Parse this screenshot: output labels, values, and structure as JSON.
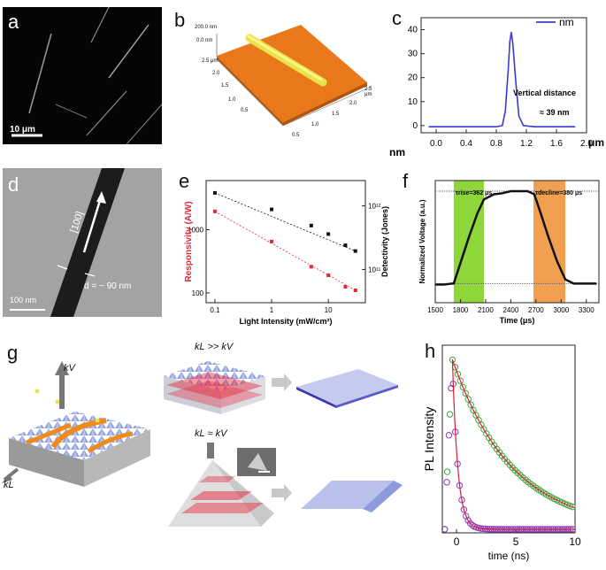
{
  "panels": {
    "a": {
      "label": "a",
      "scale_bar": "10 μm"
    },
    "b": {
      "label": "b",
      "z_top": "200.0 nm",
      "z_bottom": "0.0 nm",
      "left_ticks": [
        "2.5 μm",
        "2.0",
        "1.5",
        "1.0",
        "0.5"
      ],
      "right_ticks": [
        "2.5 μm",
        "2.0",
        "1.5",
        "1.0",
        "0.5"
      ]
    },
    "c": {
      "label": "c",
      "legend": "nm",
      "annotation_title": "Vertical distance",
      "annotation_value": "≈ 39 nm",
      "yunit": "nm",
      "xunit": "μm"
    },
    "d": {
      "label": "d",
      "direction": "[100]",
      "width_note": "d = ~ 90 nm",
      "scale_bar": "100 nm"
    },
    "e": {
      "label": "e"
    },
    "f": {
      "label": "f",
      "rise": "τrise=362 μs",
      "decline": "τdecline=380 μs"
    },
    "g": {
      "label": "g",
      "kv": "kV",
      "kl": "kL",
      "cond_top": "kL >> kV",
      "cond_bottom": "kL ≈ kV"
    },
    "h": {
      "label": "h"
    }
  },
  "colors": {
    "orange": "#f08a1c",
    "blue": "#3a3ad0",
    "red": "#e8253a",
    "green_shade": "#8ed63a",
    "orange_shade": "#f0a050",
    "pl_green": "#3aa83a",
    "pl_purple": "#8a3ab8"
  },
  "chart_data": [
    {
      "id": "c",
      "type": "line",
      "title": "",
      "xlabel": "μm",
      "ylabel": "nm",
      "xlim": [
        -0.2,
        2.0
      ],
      "ylim": [
        -3,
        45
      ],
      "x_ticks": [
        0.0,
        0.4,
        0.8,
        1.2,
        1.6,
        2.0
      ],
      "x_tick_labels": [
        "0.0",
        "0.4",
        "0.8",
        "1.2",
        "1.6",
        "2.0"
      ],
      "y_ticks": [
        0,
        10,
        20,
        30,
        40
      ],
      "y_tick_labels": [
        "0",
        "10",
        "20",
        "30",
        "40"
      ],
      "series": [
        {
          "name": "nm",
          "x": [
            -0.1,
            0.2,
            0.5,
            0.8,
            0.88,
            0.92,
            0.96,
            0.98,
            1.0,
            1.02,
            1.06,
            1.1,
            1.16,
            1.3,
            1.6,
            1.85
          ],
          "y": [
            -0.5,
            -0.5,
            -0.5,
            -0.5,
            0,
            6,
            24,
            35,
            39,
            34,
            18,
            4,
            0,
            -0.5,
            -0.5,
            -0.5
          ]
        }
      ]
    },
    {
      "id": "e",
      "type": "scatter",
      "xlabel": "Light Intensity (mW/cm²)",
      "ylabel": "Responsivity (A/W)",
      "y2label": "Detectivity (Jones)",
      "xlim": [
        0.07,
        45
      ],
      "ylim": [
        70,
        6000
      ],
      "y2lim": [
        30000000000.0,
        2500000000000.0
      ],
      "x_tick_labels": [
        "0.1",
        "1",
        "10"
      ],
      "y_tick_labels": [
        "100",
        "1000"
      ],
      "y2_tick_labels": [
        "10¹¹",
        "10¹²"
      ],
      "series": [
        {
          "name": "Detectivity",
          "axis": "right",
          "x": [
            0.1,
            1,
            5,
            10,
            20,
            30
          ],
          "y": [
            1600000000000.0,
            880000000000.0,
            490000000000.0,
            360000000000.0,
            240000000000.0,
            195000000000.0
          ]
        },
        {
          "name": "Responsivity",
          "axis": "left",
          "x": [
            0.1,
            1,
            5,
            10,
            20,
            30
          ],
          "y": [
            1950,
            650,
            260,
            190,
            125,
            110
          ]
        }
      ]
    },
    {
      "id": "f",
      "type": "line",
      "xlabel": "Time (μs)",
      "ylabel": "Normalized Voltage (a.u.)",
      "xlim": [
        1500,
        3450
      ],
      "ylim": [
        0,
        1
      ],
      "x_tick_labels": [
        "1500",
        "1800",
        "2100",
        "2400",
        "2700",
        "3000",
        "3300"
      ],
      "shaded_regions": [
        {
          "from": 1720,
          "to": 2080,
          "label": "τrise=362 μs"
        },
        {
          "from": 2670,
          "to": 3050,
          "label": "τdecline=380 μs"
        }
      ],
      "series": [
        {
          "name": "signal",
          "x": [
            1500,
            1600,
            1700,
            1720,
            1800,
            1900,
            2000,
            2080,
            2200,
            2300,
            2400,
            2500,
            2600,
            2680,
            2750,
            2850,
            2950,
            3050,
            3150,
            3300,
            3420
          ],
          "y": [
            0.09,
            0.09,
            0.1,
            0.1,
            0.3,
            0.55,
            0.78,
            0.92,
            0.97,
            0.98,
            1.0,
            1.0,
            1.0,
            0.97,
            0.8,
            0.55,
            0.32,
            0.14,
            0.1,
            0.1,
            0.1
          ]
        }
      ]
    },
    {
      "id": "h",
      "type": "scatter",
      "xlabel": "time (ns)",
      "ylabel": "PL Intensity",
      "xlim": [
        -1.2,
        10
      ],
      "ylim": [
        0,
        1.05
      ],
      "x_tick_labels": [
        "0",
        "5",
        "10"
      ],
      "series": [
        {
          "name": "green",
          "color": "#3aa83a",
          "tau": 5.0
        },
        {
          "name": "purple",
          "color": "#8a3ab8",
          "tau": 0.45
        }
      ]
    }
  ]
}
